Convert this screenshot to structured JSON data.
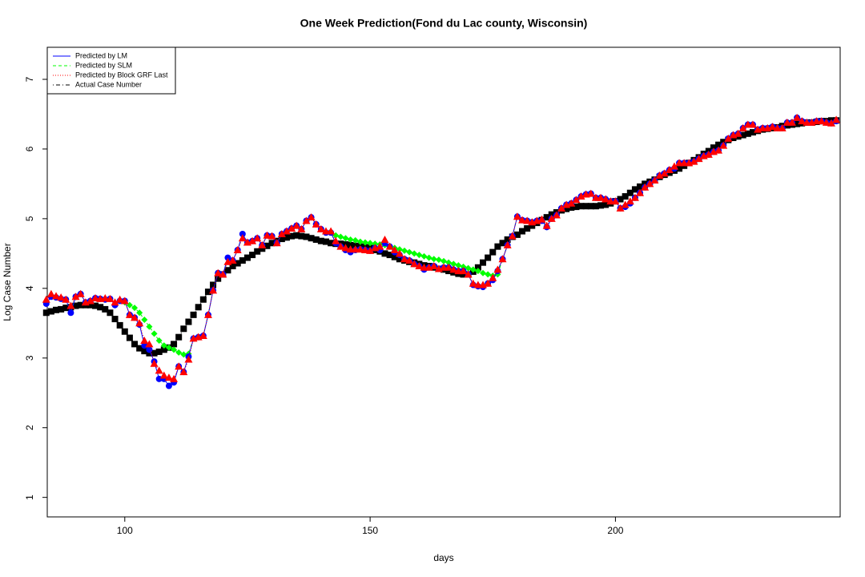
{
  "chart_data": {
    "type": "line",
    "title": "One Week Prediction(Fond du Lac county, Wisconsin)",
    "x_label": "days",
    "y_label": "Log Case Number",
    "xlim": [
      84.2,
      245.8
    ],
    "ylim": [
      0.72,
      7.46
    ],
    "xticks": [
      100,
      150,
      200
    ],
    "yticks": [
      1,
      2,
      3,
      4,
      5,
      6,
      7
    ],
    "grid": false,
    "legend": "top-left",
    "x": [
      84,
      85,
      86,
      87,
      88,
      89,
      90,
      91,
      92,
      93,
      94,
      95,
      96,
      97,
      98,
      99,
      100,
      101,
      102,
      103,
      104,
      105,
      106,
      107,
      108,
      109,
      110,
      111,
      112,
      113,
      114,
      115,
      116,
      117,
      118,
      119,
      120,
      121,
      122,
      123,
      124,
      125,
      126,
      127,
      128,
      129,
      130,
      131,
      132,
      133,
      134,
      135,
      136,
      137,
      138,
      139,
      140,
      141,
      142,
      143,
      144,
      145,
      146,
      147,
      148,
      149,
      150,
      151,
      152,
      153,
      154,
      155,
      156,
      157,
      158,
      159,
      160,
      161,
      162,
      163,
      164,
      165,
      166,
      167,
      168,
      169,
      170,
      171,
      172,
      173,
      174,
      175,
      176,
      177,
      178,
      179,
      180,
      181,
      182,
      183,
      184,
      185,
      186,
      187,
      188,
      189,
      190,
      191,
      192,
      193,
      194,
      195,
      196,
      197,
      198,
      199,
      200,
      201,
      202,
      203,
      204,
      205,
      206,
      207,
      208,
      209,
      210,
      211,
      212,
      213,
      214,
      215,
      216,
      217,
      218,
      219,
      220,
      221,
      222,
      223,
      224,
      225,
      226,
      227,
      228,
      229,
      230,
      231,
      232,
      233,
      234,
      235,
      236,
      237,
      238,
      239,
      240,
      241,
      242,
      243,
      244,
      245
    ],
    "series": [
      {
        "name": "Actual Case Number",
        "color": "#000000",
        "marker": "square",
        "dash": "dotdash",
        "values": [
          3.65,
          3.67,
          3.69,
          3.7,
          3.72,
          3.73,
          3.75,
          3.76,
          3.76,
          3.76,
          3.75,
          3.73,
          3.7,
          3.65,
          3.56,
          3.47,
          3.38,
          3.29,
          3.2,
          3.14,
          3.1,
          3.07,
          3.07,
          3.09,
          3.12,
          3.15,
          3.2,
          3.3,
          3.42,
          3.52,
          3.62,
          3.73,
          3.84,
          3.95,
          4.05,
          4.14,
          4.2,
          4.26,
          4.32,
          4.36,
          4.4,
          4.44,
          4.48,
          4.53,
          4.57,
          4.61,
          4.65,
          4.68,
          4.71,
          4.73,
          4.75,
          4.76,
          4.75,
          4.74,
          4.72,
          4.7,
          4.68,
          4.67,
          4.65,
          4.64,
          4.64,
          4.63,
          4.62,
          4.61,
          4.6,
          4.59,
          4.58,
          4.55,
          4.53,
          4.5,
          4.48,
          4.45,
          4.42,
          4.4,
          4.38,
          4.37,
          4.35,
          4.33,
          4.32,
          4.3,
          4.28,
          4.27,
          4.25,
          4.23,
          4.21,
          4.2,
          4.2,
          4.24,
          4.3,
          4.37,
          4.44,
          4.52,
          4.6,
          4.65,
          4.7,
          4.74,
          4.77,
          4.82,
          4.86,
          4.9,
          4.94,
          4.98,
          5.02,
          5.06,
          5.09,
          5.12,
          5.14,
          5.16,
          5.17,
          5.18,
          5.18,
          5.18,
          5.18,
          5.19,
          5.2,
          5.22,
          5.25,
          5.28,
          5.32,
          5.37,
          5.42,
          5.46,
          5.5,
          5.53,
          5.56,
          5.6,
          5.63,
          5.66,
          5.69,
          5.72,
          5.76,
          5.8,
          5.84,
          5.88,
          5.93,
          5.97,
          6.02,
          6.06,
          6.1,
          6.13,
          6.16,
          6.18,
          6.2,
          6.22,
          6.24,
          6.26,
          6.28,
          6.29,
          6.3,
          6.31,
          6.33,
          6.34,
          6.35,
          6.36,
          6.37,
          6.38,
          6.38,
          6.39,
          6.4,
          6.4,
          6.41,
          6.41
        ]
      },
      {
        "name": "Predicted by SLM",
        "color": "#00ff00",
        "marker": "diamond",
        "dash": "dashed",
        "values": [
          3.78,
          3.88,
          3.87,
          3.85,
          3.84,
          3.65,
          3.88,
          3.92,
          3.8,
          3.82,
          3.86,
          3.85,
          3.84,
          3.85,
          3.76,
          3.82,
          3.8,
          3.76,
          3.72,
          3.65,
          3.55,
          3.45,
          3.35,
          3.25,
          3.18,
          3.15,
          3.12,
          3.08,
          3.05,
          3.06,
          3.28,
          3.3,
          3.32,
          3.62,
          3.97,
          4.22,
          4.2,
          4.44,
          4.4,
          4.55,
          4.78,
          4.66,
          4.68,
          4.72,
          4.62,
          4.76,
          4.75,
          4.65,
          4.78,
          4.82,
          4.86,
          4.9,
          4.85,
          4.97,
          5.02,
          4.92,
          4.85,
          4.8,
          4.8,
          4.76,
          4.74,
          4.72,
          4.7,
          4.69,
          4.67,
          4.66,
          4.65,
          4.64,
          4.63,
          4.62,
          4.6,
          4.58,
          4.56,
          4.54,
          4.52,
          4.5,
          4.48,
          4.46,
          4.44,
          4.42,
          4.41,
          4.39,
          4.37,
          4.35,
          4.33,
          4.31,
          4.29,
          4.27,
          4.25,
          4.22,
          4.2,
          4.18,
          4.2,
          4.42,
          4.62,
          4.75,
          5.03,
          4.98,
          4.97,
          4.95,
          4.97,
          4.97,
          4.88,
          5.0,
          5.05,
          5.15,
          5.2,
          5.22,
          5.27,
          5.32,
          5.35,
          5.36,
          5.3,
          5.3,
          5.28,
          5.25,
          5.25,
          5.15,
          5.17,
          5.22,
          5.3,
          5.37,
          5.45,
          5.5,
          5.55,
          5.62,
          5.65,
          5.7,
          5.72,
          5.8,
          5.8,
          5.8,
          5.82,
          5.86,
          5.9,
          5.92,
          5.96,
          5.98,
          6.05,
          6.15,
          6.2,
          6.22,
          6.3,
          6.35,
          6.35,
          6.28,
          6.3,
          6.3,
          6.32,
          6.3,
          6.3,
          6.38,
          6.38,
          6.45,
          6.4,
          6.38,
          6.38,
          6.4,
          6.4,
          6.38,
          6.37,
          6.4
        ]
      },
      {
        "name": "Predicted by LM",
        "color": "#0000ff",
        "marker": "circle",
        "dash": "solid",
        "values": [
          3.78,
          3.88,
          3.87,
          3.85,
          3.84,
          3.65,
          3.88,
          3.92,
          3.8,
          3.82,
          3.86,
          3.85,
          3.84,
          3.85,
          3.76,
          3.82,
          3.82,
          3.62,
          3.58,
          3.48,
          3.18,
          3.12,
          2.95,
          2.7,
          2.7,
          2.6,
          2.65,
          2.88,
          2.8,
          3.02,
          3.28,
          3.3,
          3.32,
          3.62,
          3.97,
          4.22,
          4.2,
          4.44,
          4.4,
          4.55,
          4.78,
          4.66,
          4.68,
          4.72,
          4.62,
          4.76,
          4.75,
          4.65,
          4.78,
          4.82,
          4.86,
          4.9,
          4.85,
          4.97,
          5.02,
          4.92,
          4.85,
          4.8,
          4.8,
          4.65,
          4.6,
          4.55,
          4.52,
          4.55,
          4.56,
          4.55,
          4.54,
          4.58,
          4.55,
          4.65,
          4.6,
          4.52,
          4.48,
          4.42,
          4.4,
          4.35,
          4.32,
          4.27,
          4.3,
          4.32,
          4.28,
          4.3,
          4.3,
          4.27,
          4.25,
          4.25,
          4.2,
          4.05,
          4.03,
          4.02,
          4.07,
          4.12,
          4.25,
          4.42,
          4.62,
          4.75,
          5.03,
          4.98,
          4.97,
          4.95,
          4.97,
          4.97,
          4.88,
          5.0,
          5.05,
          5.15,
          5.2,
          5.22,
          5.27,
          5.32,
          5.35,
          5.36,
          5.3,
          5.3,
          5.28,
          5.25,
          5.25,
          5.15,
          5.17,
          5.22,
          5.3,
          5.37,
          5.45,
          5.5,
          5.55,
          5.62,
          5.65,
          5.7,
          5.72,
          5.8,
          5.8,
          5.8,
          5.82,
          5.86,
          5.9,
          5.92,
          5.96,
          5.98,
          6.05,
          6.15,
          6.2,
          6.22,
          6.3,
          6.35,
          6.35,
          6.28,
          6.3,
          6.3,
          6.32,
          6.3,
          6.3,
          6.38,
          6.38,
          6.45,
          6.4,
          6.38,
          6.38,
          6.4,
          6.4,
          6.38,
          6.37,
          6.4
        ]
      },
      {
        "name": "Predicted by Block GRF Last",
        "color": "#ff0000",
        "marker": "triangle",
        "dash": "dotted",
        "values": [
          3.84,
          3.92,
          3.89,
          3.87,
          3.84,
          3.75,
          3.88,
          3.92,
          3.8,
          3.82,
          3.86,
          3.85,
          3.86,
          3.85,
          3.8,
          3.84,
          3.82,
          3.62,
          3.58,
          3.5,
          3.25,
          3.2,
          2.92,
          2.82,
          2.75,
          2.72,
          2.7,
          2.88,
          2.8,
          2.98,
          3.28,
          3.3,
          3.32,
          3.62,
          3.97,
          4.22,
          4.2,
          4.38,
          4.4,
          4.55,
          4.72,
          4.66,
          4.68,
          4.72,
          4.62,
          4.76,
          4.75,
          4.65,
          4.78,
          4.82,
          4.86,
          4.9,
          4.85,
          4.97,
          5.02,
          4.92,
          4.85,
          4.82,
          4.82,
          4.68,
          4.6,
          4.58,
          4.56,
          4.56,
          4.56,
          4.55,
          4.54,
          4.58,
          4.6,
          4.7,
          4.6,
          4.55,
          4.5,
          4.42,
          4.4,
          4.35,
          4.32,
          4.3,
          4.3,
          4.32,
          4.28,
          4.3,
          4.3,
          4.27,
          4.25,
          4.25,
          4.2,
          4.07,
          4.05,
          4.05,
          4.07,
          4.15,
          4.27,
          4.42,
          4.62,
          4.75,
          5.03,
          4.98,
          4.97,
          4.95,
          4.97,
          4.99,
          4.9,
          5.0,
          5.05,
          5.15,
          5.2,
          5.22,
          5.27,
          5.32,
          5.35,
          5.36,
          5.3,
          5.3,
          5.28,
          5.25,
          5.25,
          5.15,
          5.2,
          5.25,
          5.3,
          5.37,
          5.45,
          5.5,
          5.55,
          5.62,
          5.65,
          5.7,
          5.75,
          5.8,
          5.8,
          5.8,
          5.82,
          5.86,
          5.9,
          5.92,
          5.96,
          5.98,
          6.05,
          6.15,
          6.2,
          6.22,
          6.3,
          6.35,
          6.35,
          6.28,
          6.3,
          6.3,
          6.32,
          6.3,
          6.3,
          6.38,
          6.38,
          6.45,
          6.4,
          6.38,
          6.38,
          6.4,
          6.4,
          6.38,
          6.37,
          6.42
        ]
      }
    ]
  }
}
